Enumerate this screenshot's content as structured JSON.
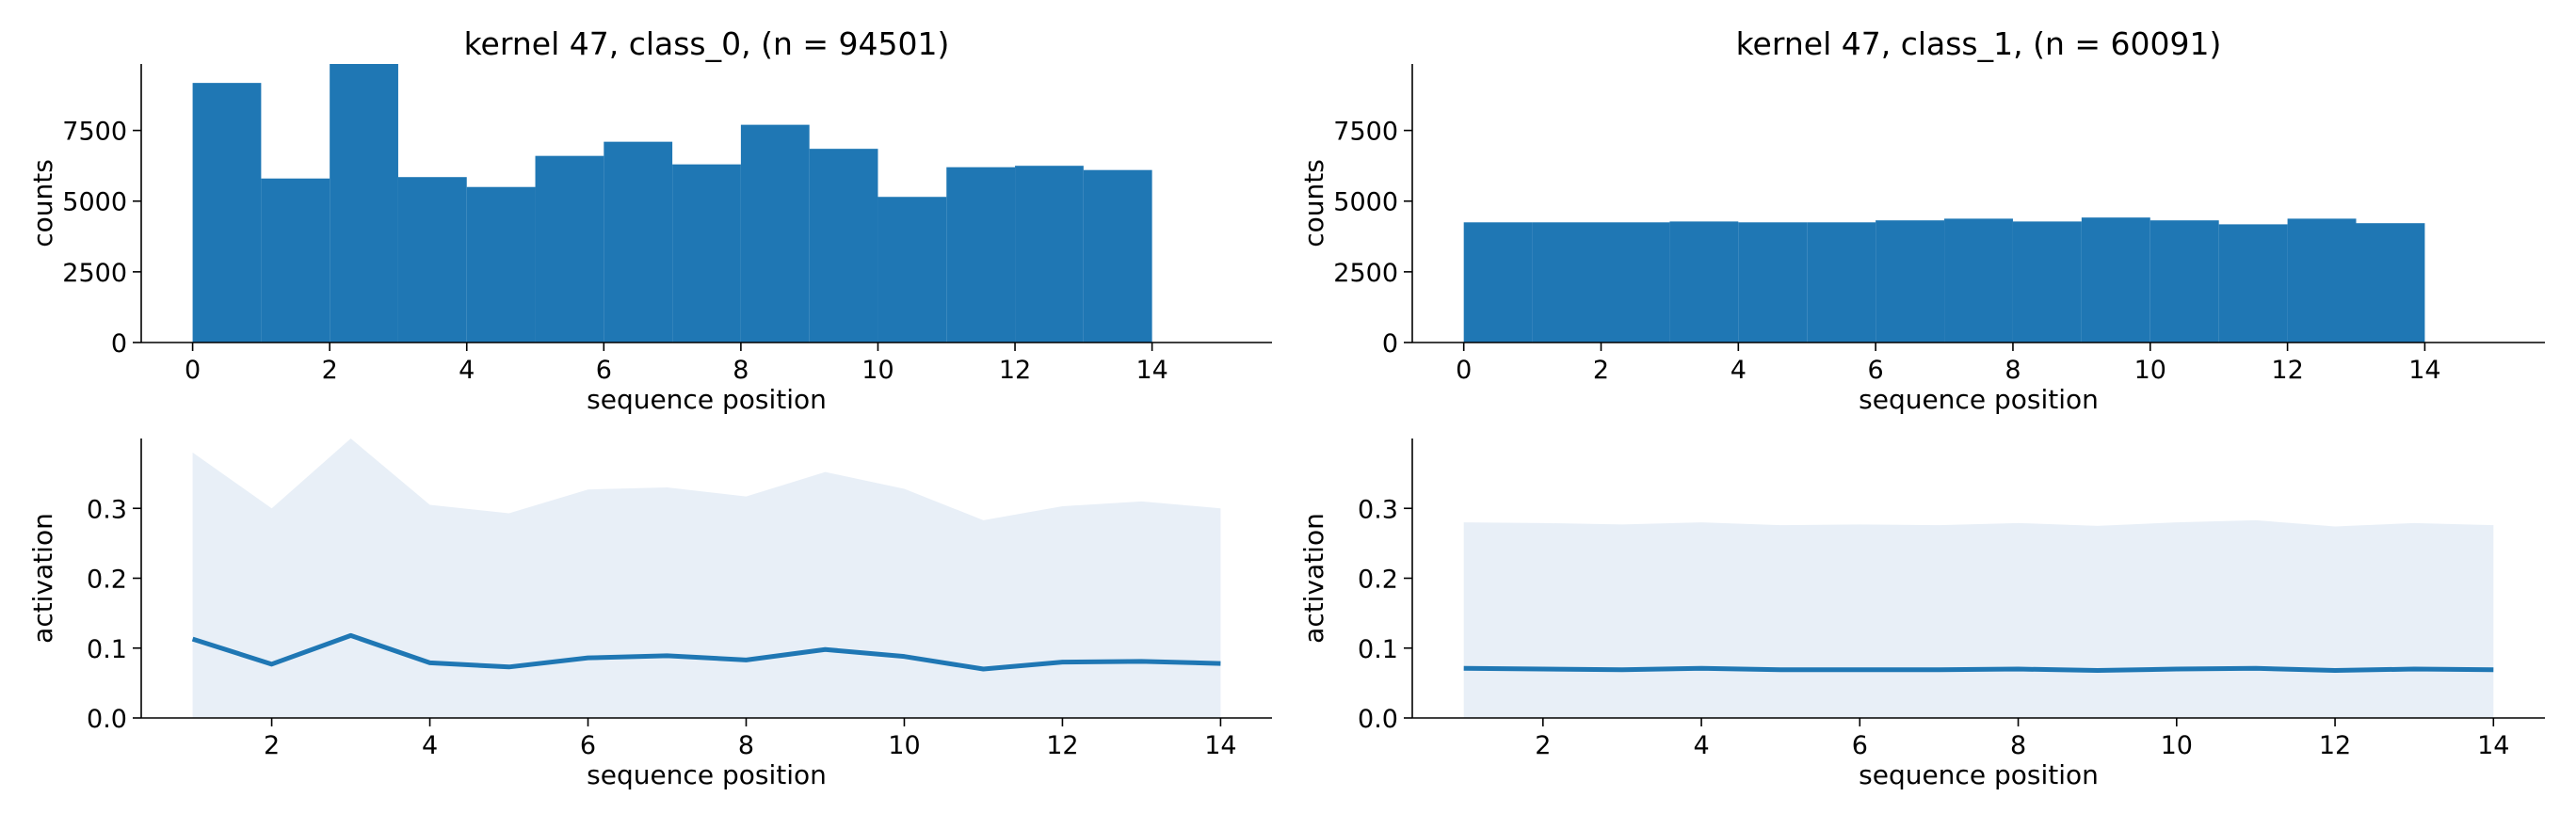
{
  "chart_data": [
    {
      "type": "bar",
      "title": "kernel 47, class_0, (n = 94501)",
      "xlabel": "sequence position",
      "ylabel": "counts",
      "bin_edges": [
        0,
        1,
        2,
        3,
        4,
        5,
        6,
        7,
        8,
        9,
        10,
        11,
        12,
        13,
        14
      ],
      "values": [
        9180,
        5800,
        9850,
        5850,
        5500,
        6600,
        7100,
        6300,
        7700,
        6850,
        5150,
        6200,
        6250,
        6100
      ],
      "xlim": [
        -0.75,
        15.75
      ],
      "ylim": [
        0,
        9850
      ],
      "xticks": [
        0,
        2,
        4,
        6,
        8,
        10,
        12,
        14
      ],
      "yticks": [
        0,
        2500,
        5000,
        7500
      ],
      "color": "#1f77b4",
      "grid": false
    },
    {
      "type": "bar",
      "title": "kernel 47, class_1, (n = 60091)",
      "xlabel": "sequence position",
      "ylabel": "counts",
      "bin_edges": [
        0,
        1,
        2,
        3,
        4,
        5,
        6,
        7,
        8,
        9,
        10,
        11,
        12,
        13,
        14
      ],
      "values": [
        4250,
        4250,
        4250,
        4280,
        4250,
        4250,
        4320,
        4380,
        4280,
        4420,
        4320,
        4180,
        4380,
        4220
      ],
      "xlim": [
        -0.75,
        15.75
      ],
      "ylim": [
        0,
        9850
      ],
      "xticks": [
        0,
        2,
        4,
        6,
        8,
        10,
        12,
        14
      ],
      "yticks": [
        0,
        2500,
        5000,
        7500
      ],
      "color": "#1f77b4",
      "grid": false
    },
    {
      "type": "area",
      "xlabel": "sequence position",
      "ylabel": "activation",
      "x": [
        1,
        2,
        3,
        4,
        5,
        6,
        7,
        8,
        9,
        10,
        11,
        12,
        13,
        14
      ],
      "mean": [
        0.113,
        0.077,
        0.118,
        0.079,
        0.073,
        0.086,
        0.089,
        0.083,
        0.098,
        0.088,
        0.07,
        0.08,
        0.081,
        0.078
      ],
      "upper": [
        0.38,
        0.3,
        0.4,
        0.305,
        0.293,
        0.327,
        0.33,
        0.317,
        0.352,
        0.328,
        0.283,
        0.303,
        0.31,
        0.3
      ],
      "xlim": [
        0.35,
        14.65
      ],
      "ylim": [
        0,
        0.4
      ],
      "xticks": [
        2,
        4,
        6,
        8,
        10,
        12,
        14
      ],
      "yticks": [
        0.0,
        0.1,
        0.2,
        0.3
      ],
      "color": "#1f77b4",
      "band_color": "#e8eff7",
      "grid": false
    },
    {
      "type": "area",
      "xlabel": "sequence position",
      "ylabel": "activation",
      "x": [
        1,
        2,
        3,
        4,
        5,
        6,
        7,
        8,
        9,
        10,
        11,
        12,
        13,
        14
      ],
      "mean": [
        0.071,
        0.07,
        0.069,
        0.071,
        0.069,
        0.069,
        0.069,
        0.07,
        0.068,
        0.07,
        0.071,
        0.068,
        0.07,
        0.069
      ],
      "upper": [
        0.28,
        0.279,
        0.277,
        0.28,
        0.276,
        0.277,
        0.276,
        0.279,
        0.275,
        0.28,
        0.283,
        0.274,
        0.279,
        0.276
      ],
      "xlim": [
        0.35,
        14.65
      ],
      "ylim": [
        0,
        0.4
      ],
      "xticks": [
        2,
        4,
        6,
        8,
        10,
        12,
        14
      ],
      "yticks": [
        0.0,
        0.1,
        0.2,
        0.3
      ],
      "color": "#1f77b4",
      "band_color": "#e8eff7",
      "grid": false
    }
  ]
}
